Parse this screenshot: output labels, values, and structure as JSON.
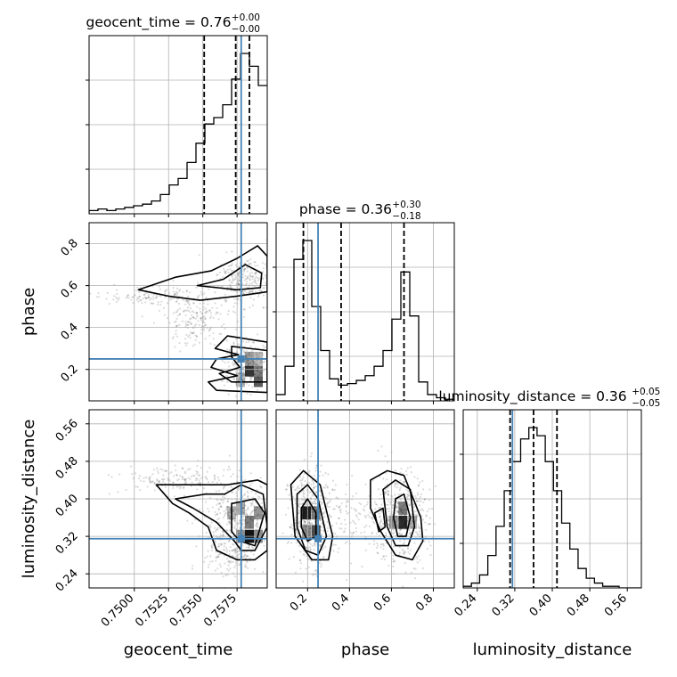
{
  "chart_data": {
    "type": "corner",
    "parameters": [
      "geocent_time",
      "phase",
      "luminosity_distance"
    ],
    "titles": [
      {
        "param": "geocent_time",
        "text": "geocent_time = 0.76",
        "sup": "+0.00",
        "sub": "−0.00"
      },
      {
        "param": "phase",
        "text": "phase = 0.36",
        "sup": "+0.30",
        "sub": "−0.18"
      },
      {
        "param": "luminosity_distance",
        "text": "luminosity_distance = 0.36",
        "sup": "+0.05",
        "sub": "−0.05"
      }
    ],
    "ranges": {
      "geocent_time": [
        0.7467,
        0.7597
      ],
      "phase": [
        0.05,
        0.9
      ],
      "luminosity_distance": [
        0.21,
        0.59
      ]
    },
    "ticks": {
      "geocent_time": [
        0.75,
        0.7525,
        0.755,
        0.7575
      ],
      "phase": [
        0.2,
        0.4,
        0.6,
        0.8
      ],
      "luminosity_distance": [
        0.24,
        0.32,
        0.4,
        0.48,
        0.56
      ]
    },
    "tick_labels": {
      "geocent_time": [
        "0.7500",
        "0.7525",
        "0.7550",
        "0.7575"
      ],
      "phase": [
        "0.2",
        "0.4",
        "0.6",
        "0.8"
      ],
      "luminosity_distance": [
        "0.24",
        "0.32",
        "0.40",
        "0.48",
        "0.56"
      ]
    },
    "truths": {
      "geocent_time": 0.7578,
      "phase": 0.25,
      "luminosity_distance": 0.315
    },
    "quantiles": {
      "geocent_time": [
        0.7551,
        0.7574,
        0.7584
      ],
      "phase": [
        0.18,
        0.36,
        0.66
      ],
      "luminosity_distance": [
        0.31,
        0.36,
        0.41
      ]
    },
    "histograms": {
      "geocent_time": {
        "edges": [
          0.7467,
          0.74735,
          0.748,
          0.74865,
          0.7493,
          0.74995,
          0.7506,
          0.75125,
          0.7519,
          0.75255,
          0.7532,
          0.75385,
          0.7545,
          0.75515,
          0.7558,
          0.75645,
          0.7571,
          0.75775,
          0.7584,
          0.75905,
          0.7597
        ],
        "counts": [
          2,
          3,
          2,
          3,
          4,
          5,
          6,
          8,
          12,
          18,
          22,
          32,
          44,
          56,
          60,
          68,
          84,
          100,
          92,
          80
        ]
      },
      "phase": {
        "edges": [
          0.05,
          0.0925,
          0.135,
          0.1775,
          0.22,
          0.2625,
          0.305,
          0.3475,
          0.39,
          0.4325,
          0.475,
          0.5175,
          0.56,
          0.6025,
          0.645,
          0.6875,
          0.73,
          0.7725,
          0.815,
          0.8575,
          0.9
        ],
        "counts": [
          4,
          22,
          90,
          102,
          60,
          32,
          14,
          10,
          11,
          13,
          16,
          22,
          32,
          52,
          82,
          54,
          12,
          4,
          2,
          1
        ]
      },
      "luminosity_distance": {
        "edges": [
          0.21,
          0.2275,
          0.245,
          0.2625,
          0.28,
          0.2975,
          0.315,
          0.3325,
          0.35,
          0.3675,
          0.385,
          0.4025,
          0.42,
          0.4375,
          0.455,
          0.4725,
          0.49,
          0.5075,
          0.525,
          0.5425,
          0.56,
          0.5775,
          0.59
        ],
        "counts": [
          1,
          3,
          8,
          20,
          38,
          60,
          78,
          92,
          99,
          94,
          78,
          60,
          40,
          24,
          12,
          6,
          3,
          1,
          1,
          0,
          0,
          0
        ]
      }
    },
    "contours": [
      {
        "x": "geocent_time",
        "y": "phase",
        "levels": [
          [
            [
              0.7503,
              0.58
            ],
            [
              0.753,
              0.64
            ],
            [
              0.7556,
              0.67
            ],
            [
              0.7575,
              0.73
            ],
            [
              0.759,
              0.79
            ],
            [
              0.7597,
              0.74
            ],
            [
              0.7597,
              0.57
            ],
            [
              0.7575,
              0.55
            ],
            [
              0.7548,
              0.53
            ],
            [
              0.7525,
              0.55
            ],
            [
              0.7503,
              0.58
            ]
          ],
          [
            [
              0.7546,
              0.6
            ],
            [
              0.7565,
              0.63
            ],
            [
              0.7581,
              0.7
            ],
            [
              0.7593,
              0.66
            ],
            [
              0.7592,
              0.59
            ],
            [
              0.7575,
              0.58
            ],
            [
              0.7546,
              0.6
            ]
          ],
          [
            [
              0.7568,
              0.36
            ],
            [
              0.7597,
              0.33
            ],
            [
              0.7597,
              0.09
            ],
            [
              0.756,
              0.1
            ],
            [
              0.7554,
              0.14
            ],
            [
              0.7575,
              0.17
            ],
            [
              0.7556,
              0.21
            ],
            [
              0.756,
              0.25
            ],
            [
              0.7576,
              0.27
            ],
            [
              0.7559,
              0.3
            ],
            [
              0.7568,
              0.36
            ]
          ],
          [
            [
              0.7571,
              0.31
            ],
            [
              0.7597,
              0.29
            ],
            [
              0.7597,
              0.14
            ],
            [
              0.7571,
              0.14
            ],
            [
              0.7562,
              0.18
            ],
            [
              0.7577,
              0.21
            ],
            [
              0.7571,
              0.26
            ],
            [
              0.7571,
              0.31
            ]
          ]
        ]
      },
      {
        "x": "geocent_time",
        "y": "luminosity_distance",
        "levels": [
          [
            [
              0.7516,
              0.43
            ],
            [
              0.7545,
              0.43
            ],
            [
              0.7568,
              0.43
            ],
            [
              0.759,
              0.44
            ],
            [
              0.7597,
              0.43
            ],
            [
              0.7597,
              0.29
            ],
            [
              0.7588,
              0.27
            ],
            [
              0.7575,
              0.27
            ],
            [
              0.756,
              0.29
            ],
            [
              0.7554,
              0.34
            ],
            [
              0.754,
              0.37
            ],
            [
              0.7528,
              0.39
            ],
            [
              0.7516,
              0.43
            ]
          ],
          [
            [
              0.753,
              0.4
            ],
            [
              0.7552,
              0.41
            ],
            [
              0.7566,
              0.41
            ],
            [
              0.7578,
              0.43
            ],
            [
              0.7594,
              0.41
            ],
            [
              0.7597,
              0.34
            ],
            [
              0.7588,
              0.29
            ],
            [
              0.7578,
              0.29
            ],
            [
              0.7573,
              0.31
            ],
            [
              0.756,
              0.35
            ],
            [
              0.7543,
              0.38
            ],
            [
              0.753,
              0.4
            ]
          ],
          [
            [
              0.7571,
              0.39
            ],
            [
              0.7588,
              0.4
            ],
            [
              0.7595,
              0.37
            ],
            [
              0.7588,
              0.3
            ],
            [
              0.7577,
              0.31
            ],
            [
              0.7571,
              0.33
            ],
            [
              0.7571,
              0.39
            ]
          ]
        ]
      },
      {
        "x": "phase",
        "y": "luminosity_distance",
        "levels": [
          [
            [
              0.12,
              0.43
            ],
            [
              0.18,
              0.46
            ],
            [
              0.26,
              0.43
            ],
            [
              0.32,
              0.32
            ],
            [
              0.3,
              0.27
            ],
            [
              0.22,
              0.27
            ],
            [
              0.14,
              0.32
            ],
            [
              0.12,
              0.43
            ]
          ],
          [
            [
              0.15,
              0.41
            ],
            [
              0.2,
              0.43
            ],
            [
              0.25,
              0.4
            ],
            [
              0.29,
              0.32
            ],
            [
              0.25,
              0.28
            ],
            [
              0.19,
              0.29
            ],
            [
              0.15,
              0.34
            ],
            [
              0.15,
              0.41
            ]
          ],
          [
            [
              0.17,
              0.38
            ],
            [
              0.2,
              0.4
            ],
            [
              0.24,
              0.37
            ],
            [
              0.24,
              0.32
            ],
            [
              0.2,
              0.31
            ],
            [
              0.17,
              0.34
            ],
            [
              0.17,
              0.38
            ]
          ],
          [
            [
              0.5,
              0.44
            ],
            [
              0.58,
              0.46
            ],
            [
              0.66,
              0.45
            ],
            [
              0.74,
              0.36
            ],
            [
              0.75,
              0.31
            ],
            [
              0.7,
              0.27
            ],
            [
              0.62,
              0.28
            ],
            [
              0.55,
              0.33
            ],
            [
              0.5,
              0.38
            ],
            [
              0.5,
              0.44
            ]
          ],
          [
            [
              0.56,
              0.42
            ],
            [
              0.62,
              0.44
            ],
            [
              0.69,
              0.42
            ],
            [
              0.71,
              0.34
            ],
            [
              0.68,
              0.3
            ],
            [
              0.62,
              0.3
            ],
            [
              0.58,
              0.34
            ],
            [
              0.56,
              0.42
            ]
          ],
          [
            [
              0.62,
              0.4
            ],
            [
              0.66,
              0.41
            ],
            [
              0.69,
              0.36
            ],
            [
              0.67,
              0.32
            ],
            [
              0.63,
              0.32
            ],
            [
              0.61,
              0.36
            ],
            [
              0.62,
              0.4
            ]
          ],
          [
            [
              0.52,
              0.37
            ],
            [
              0.56,
              0.38
            ],
            [
              0.57,
              0.34
            ],
            [
              0.54,
              0.33
            ],
            [
              0.52,
              0.37
            ]
          ]
        ]
      }
    ],
    "density_cells": [
      {
        "x": "geocent_time",
        "y": "phase",
        "cells": [
          [
            0.75905,
            0.15,
            0.7
          ],
          [
            0.75905,
            0.2,
            0.55
          ],
          [
            0.7584,
            0.2,
            0.85
          ],
          [
            0.7584,
            0.25,
            0.4
          ],
          [
            0.75775,
            0.15,
            0.3
          ],
          [
            0.75905,
            0.25,
            0.3
          ]
        ]
      },
      {
        "x": "geocent_time",
        "y": "luminosity_distance",
        "cells": [
          [
            0.7584,
            0.32,
            1.0
          ],
          [
            0.7584,
            0.35,
            0.55
          ],
          [
            0.75775,
            0.32,
            0.45
          ],
          [
            0.75905,
            0.37,
            0.45
          ],
          [
            0.75905,
            0.32,
            0.5
          ],
          [
            0.7571,
            0.37,
            0.3
          ],
          [
            0.75775,
            0.38,
            0.35
          ]
        ]
      },
      {
        "x": "phase",
        "y": "luminosity_distance",
        "cells": [
          [
            0.195,
            0.37,
            0.95
          ],
          [
            0.24,
            0.33,
            0.75
          ],
          [
            0.24,
            0.37,
            0.55
          ],
          [
            0.195,
            0.33,
            0.5
          ],
          [
            0.655,
            0.35,
            0.9
          ],
          [
            0.655,
            0.38,
            0.55
          ],
          [
            0.61,
            0.35,
            0.45
          ],
          [
            0.7,
            0.35,
            0.35
          ]
        ]
      }
    ]
  }
}
